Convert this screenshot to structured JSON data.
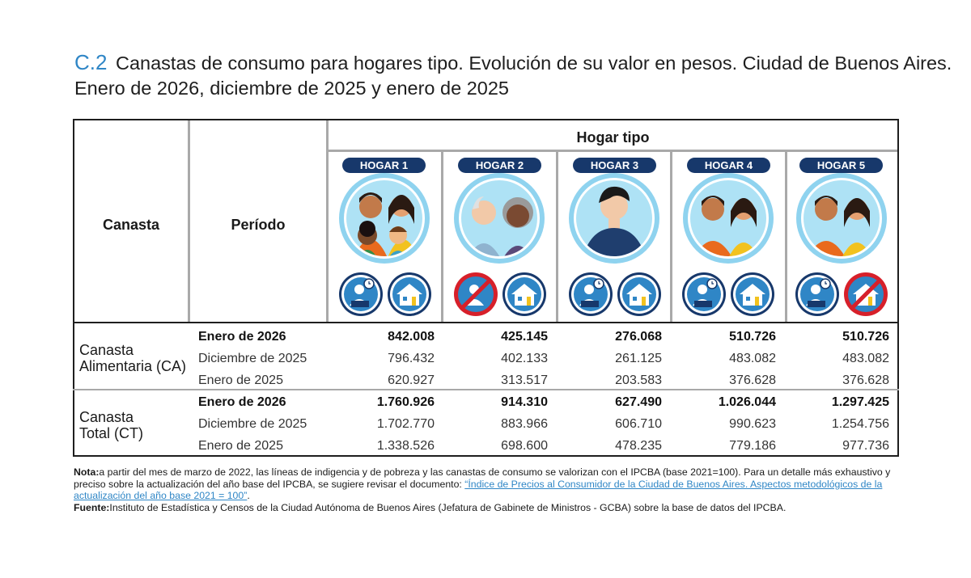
{
  "title": {
    "code": "C.2",
    "line1": "Canastas de consumo para hogares tipo. Evolución de su valor en pesos. Ciudad de Buenos Aires.",
    "line2": "Enero de 2026, diciembre de 2025 y enero de 2025"
  },
  "table": {
    "col_canasta": "Canasta",
    "col_periodo": "Período",
    "col_hogar_tipo": "Hogar tipo",
    "hogares": [
      "HOGAR 1",
      "HOGAR 2",
      "HOGAR 3",
      "HOGAR 4",
      "HOGAR 5"
    ],
    "icons": [
      [
        "worker-icon",
        "house-icon"
      ],
      [
        "no-worker-icon",
        "house-icon"
      ],
      [
        "worker-icon",
        "house-icon"
      ],
      [
        "worker-icon",
        "house-icon"
      ],
      [
        "worker-icon",
        "no-house-icon"
      ]
    ],
    "groups": [
      {
        "label_line1": "Canasta",
        "label_line2": "Alimentaria (CA)",
        "rows": [
          {
            "period": "Enero de 2026",
            "bold": true,
            "values": [
              "842.008",
              "425.145",
              "276.068",
              "510.726",
              "510.726"
            ]
          },
          {
            "period": "Diciembre de 2025",
            "bold": false,
            "values": [
              "796.432",
              "402.133",
              "261.125",
              "483.082",
              "483.082"
            ]
          },
          {
            "period": "Enero de 2025",
            "bold": false,
            "values": [
              "620.927",
              "313.517",
              "203.583",
              "376.628",
              "376.628"
            ]
          }
        ]
      },
      {
        "label_line1": "Canasta",
        "label_line2": "Total (CT)",
        "rows": [
          {
            "period": "Enero de 2026",
            "bold": true,
            "values": [
              "1.760.926",
              "914.310",
              "627.490",
              "1.026.044",
              "1.297.425"
            ]
          },
          {
            "period": "Diciembre de 2025",
            "bold": false,
            "values": [
              "1.702.770",
              "883.966",
              "606.710",
              "990.623",
              "1.254.756"
            ]
          },
          {
            "period": "Enero de 2025",
            "bold": false,
            "values": [
              "1.338.526",
              "698.600",
              "478.235",
              "779.186",
              "977.736"
            ]
          }
        ]
      }
    ]
  },
  "note": {
    "label": "Nota:",
    "text": "a partir del mes de marzo de 2022, las líneas de indigencia y de pobreza y las canastas de consumo se valorizan con el IPCBA (base 2021=100). Para un detalle más exhaustivo y preciso sobre la actualización del año base del IPCBA, se sugiere revisar el documento: ",
    "link": "“Índice de Precios al Consumidor de la Ciudad de Buenos Aires. Aspectos metodológicos de la actualización del año base 2021 = 100”",
    "after": "."
  },
  "source": {
    "label": "Fuente:",
    "text": "Instituto de Estadística y Censos de la Ciudad Autónoma de Buenos Aires (Jefatura de Gabinete de Ministros - GCBA) sobre la base de datos del IPCBA."
  },
  "colors": {
    "accent": "#2f86c6",
    "pill": "#17386b",
    "ring": "#8fd3ef",
    "prohibited": "#d7202a"
  }
}
